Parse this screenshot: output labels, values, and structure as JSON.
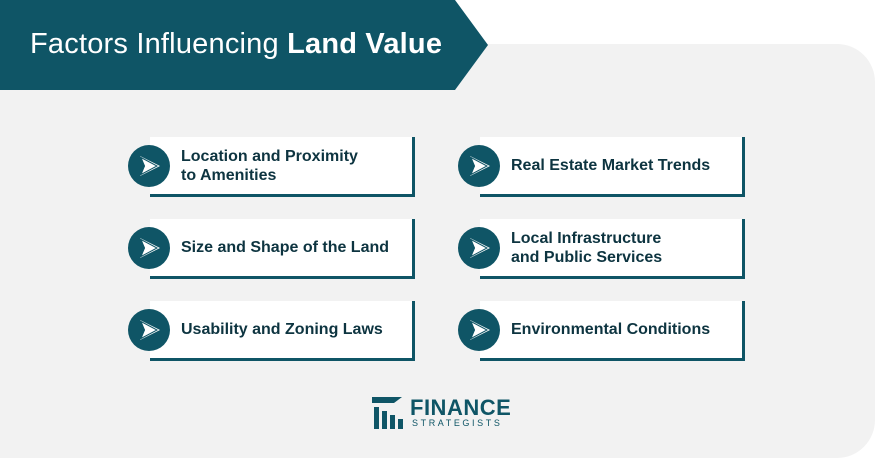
{
  "title": {
    "regular": "Factors Influencing ",
    "bold": "Land Value"
  },
  "colors": {
    "primary": "#0f5566",
    "text": "#0d3440",
    "panel": "#f2f2f2"
  },
  "factors": [
    {
      "label": "Location and Proximity\nto Amenities",
      "icon": "arrow-right-icon"
    },
    {
      "label": "Real Estate Market Trends",
      "icon": "arrow-right-icon"
    },
    {
      "label": "Size and Shape of the Land",
      "icon": "arrow-right-icon"
    },
    {
      "label": "Local Infrastructure\nand Public Services",
      "icon": "arrow-right-icon"
    },
    {
      "label": "Usability and Zoning Laws",
      "icon": "arrow-right-icon"
    },
    {
      "label": "Environmental Conditions",
      "icon": "arrow-right-icon"
    }
  ],
  "logo": {
    "name": "FINANCE",
    "sub": "STRATEGISTS"
  }
}
